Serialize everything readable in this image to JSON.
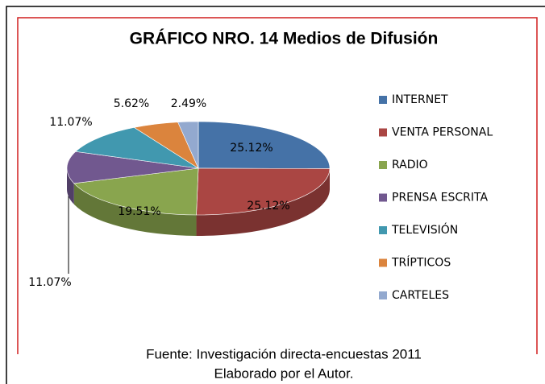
{
  "chart_data": {
    "type": "pie",
    "title": "GRÁFICO NRO. 14 Medios de Difusión",
    "categories": [
      "INTERNET",
      "VENTA PERSONAL",
      "RADIO",
      "PRENSA ESCRITA",
      "TELEVISIÓN",
      "TRÍPTICOS",
      "CARTELES"
    ],
    "values": [
      25.12,
      25.12,
      19.51,
      11.07,
      11.07,
      5.62,
      2.49
    ],
    "value_labels": [
      "25.12%",
      "25.12%",
      "19.51%",
      "11.07%",
      "11.07%",
      "5.62%",
      "2.49%"
    ],
    "colors": [
      "#4572a7",
      "#aa4643",
      "#89a54e",
      "#71588f",
      "#4198af",
      "#db843d",
      "#93a9cf"
    ],
    "legend": "right",
    "footnotes": [
      "Fuente: Investigación directa-encuestas 2011",
      "Elaborado por  el Autor."
    ]
  }
}
